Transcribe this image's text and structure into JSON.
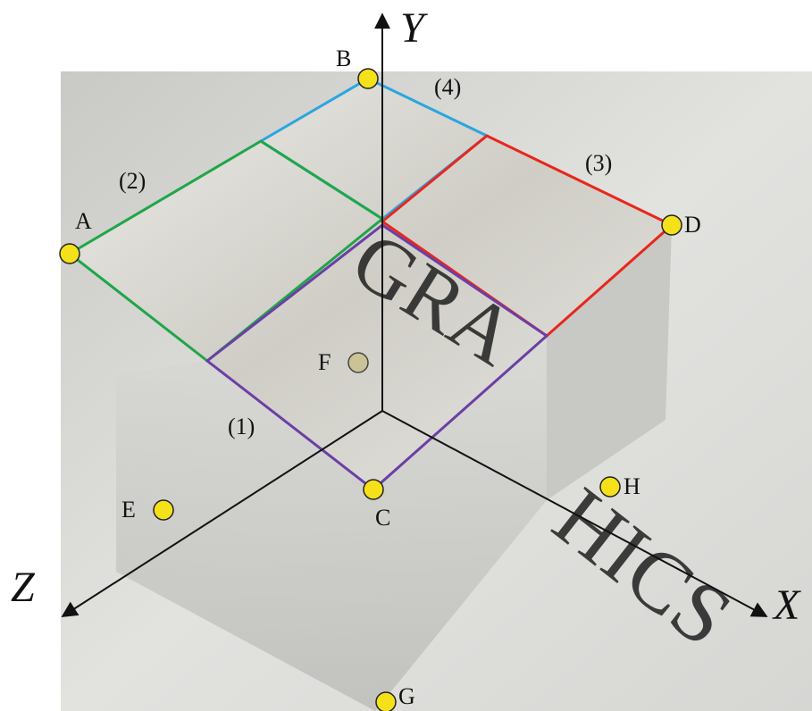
{
  "axes": {
    "x": "X",
    "y": "Y",
    "z": "Z"
  },
  "points": [
    {
      "label": "A"
    },
    {
      "label": "B"
    },
    {
      "label": "C"
    },
    {
      "label": "D"
    },
    {
      "label": "E"
    },
    {
      "label": "F"
    },
    {
      "label": "G"
    },
    {
      "label": "H"
    }
  ],
  "regions": [
    {
      "label": "(1)"
    },
    {
      "label": "(2)"
    },
    {
      "label": "(3)"
    },
    {
      "label": "(4)"
    }
  ],
  "photo_text": [
    "GRA",
    "HICS"
  ]
}
